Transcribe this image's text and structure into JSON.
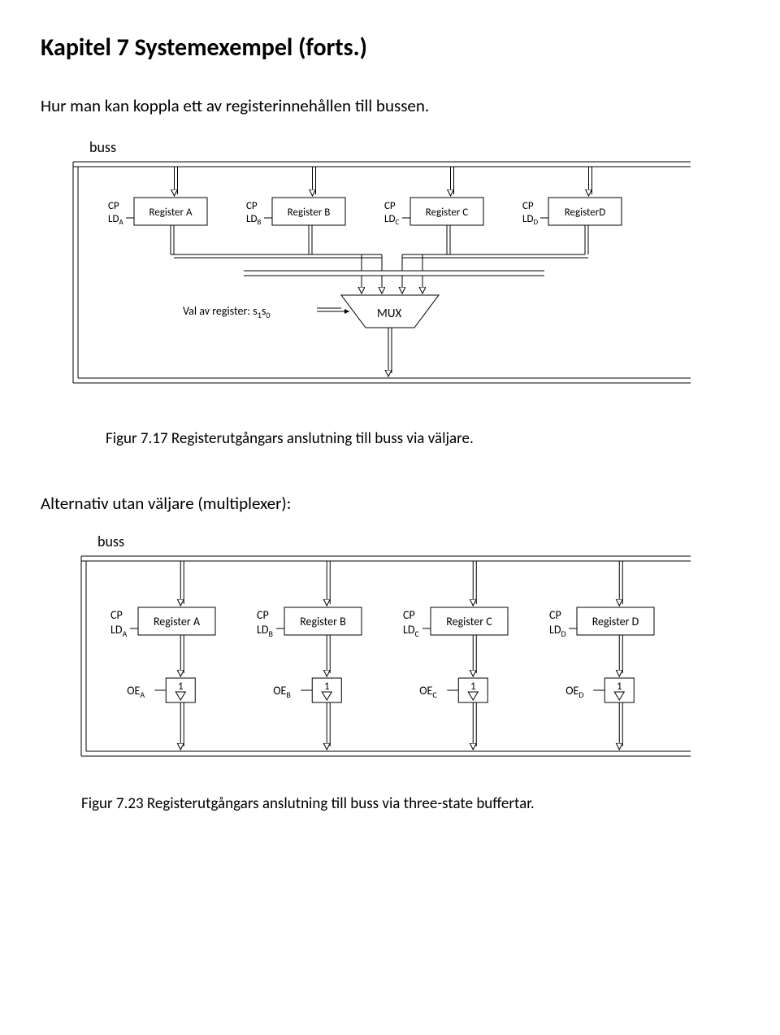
{
  "page_title": "Kapitel 7 Systemexempel (forts.)",
  "intro_text": "Hur man kan koppla ett av registerinnehållen till bussen.",
  "fig1": {
    "bus_label": "buss",
    "registers": [
      {
        "cp": "CP",
        "ld": "LD",
        "sub": "A",
        "name": "Register A"
      },
      {
        "cp": "CP",
        "ld": "LD",
        "sub": "B",
        "name": "Register B"
      },
      {
        "cp": "CP",
        "ld": "LD",
        "sub": "C",
        "name": "Register C"
      },
      {
        "cp": "CP",
        "ld": "LD",
        "sub": "D",
        "name": "RegisterD"
      }
    ],
    "mux_label": "MUX",
    "sel_label": "Val av register: s",
    "sel_sub1": "1",
    "sel_sub0": "0",
    "sel_s2": "s",
    "caption": "Figur 7.17  Registerutgångars anslutning till buss via väljare."
  },
  "alt_text": "Alternativ utan väljare (multiplexer):",
  "fig2": {
    "bus_label": "buss",
    "registers": [
      {
        "cp": "CP",
        "ld": "LD",
        "sub": "A",
        "name": "Register A",
        "oe": "OE",
        "buf": "1"
      },
      {
        "cp": "CP",
        "ld": "LD",
        "sub": "B",
        "name": "Register B",
        "oe": "OE",
        "buf": "1"
      },
      {
        "cp": "CP",
        "ld": "LD",
        "sub": "C",
        "name": "Register C",
        "oe": "OE",
        "buf": "1"
      },
      {
        "cp": "CP",
        "ld": "LD",
        "sub": "D",
        "name": "Register D",
        "oe": "OE",
        "buf": "1"
      }
    ],
    "caption": "Figur 7.23  Registerutgångars anslutning till buss via three-state buffertar."
  },
  "style": {
    "stroke": "#000000",
    "stroke_width": 1,
    "font_size_label": 14,
    "font_size_small": 11,
    "font_size_bus": 18
  }
}
